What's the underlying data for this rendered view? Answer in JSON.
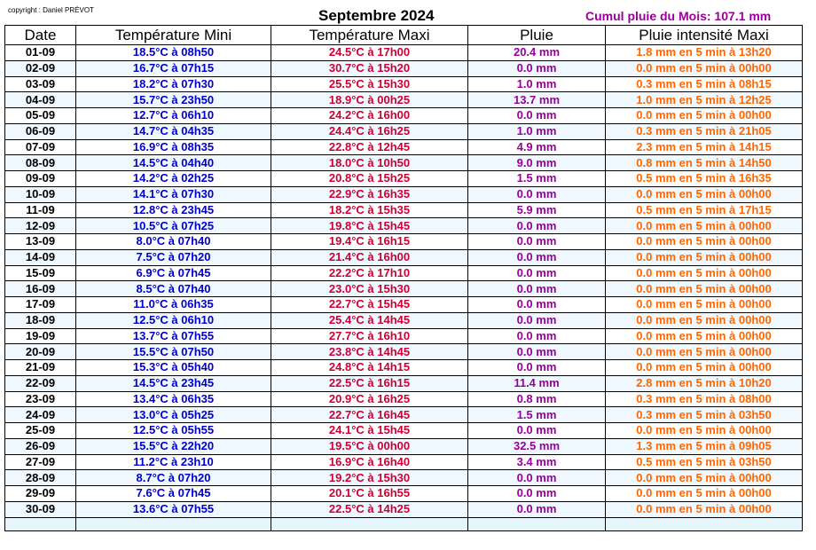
{
  "header": {
    "copyright": "copyright : Daniel PRÉVOT",
    "title": "Septembre 2024",
    "cumul": "Cumul pluie du Mois: 107.1 mm"
  },
  "colors": {
    "min_temp": "#0000cc",
    "max_temp": "#cc0033",
    "rain": "#990099",
    "intensity": "#ff6600",
    "alt_row_bg": "#eef8fe"
  },
  "table": {
    "columns": [
      "Date",
      "Température Mini",
      "Température Maxi",
      "Pluie",
      "Pluie intensité Maxi"
    ],
    "rows": [
      {
        "date": "01-09",
        "min": "18.5°C à 08h50",
        "max": "24.5°C à 17h00",
        "rain": "20.4 mm",
        "intensity": "1.8 mm en 5 min à 13h20"
      },
      {
        "date": "02-09",
        "min": "16.7°C à 07h15",
        "max": "30.7°C à 15h20",
        "rain": "0.0 mm",
        "intensity": "0.0 mm en 5 min à 00h00"
      },
      {
        "date": "03-09",
        "min": "18.2°C à 07h30",
        "max": "25.5°C à 15h30",
        "rain": "1.0 mm",
        "intensity": "0.3 mm en 5 min à 08h15"
      },
      {
        "date": "04-09",
        "min": "15.7°C à 23h50",
        "max": "18.9°C à 00h25",
        "rain": "13.7 mm",
        "intensity": "1.0 mm en 5 min à 12h25"
      },
      {
        "date": "05-09",
        "min": "12.7°C à 06h10",
        "max": "24.2°C à 16h00",
        "rain": "0.0 mm",
        "intensity": "0.0 mm en 5 min à 00h00"
      },
      {
        "date": "06-09",
        "min": "14.7°C à 04h35",
        "max": "24.4°C à 16h25",
        "rain": "1.0 mm",
        "intensity": "0.3 mm en 5 min à 21h05"
      },
      {
        "date": "07-09",
        "min": "16.9°C à 08h35",
        "max": "22.8°C à 12h45",
        "rain": "4.9 mm",
        "intensity": "2.3 mm en 5 min à 14h15"
      },
      {
        "date": "08-09",
        "min": "14.5°C à 04h40",
        "max": "18.0°C à 10h50",
        "rain": "9.0 mm",
        "intensity": "0.8 mm en 5 min à 14h50"
      },
      {
        "date": "09-09",
        "min": "14.2°C à 02h25",
        "max": "20.8°C à 15h25",
        "rain": "1.5 mm",
        "intensity": "0.5 mm en 5 min à 16h35"
      },
      {
        "date": "10-09",
        "min": "14.1°C à 07h30",
        "max": "22.9°C à 16h35",
        "rain": "0.0 mm",
        "intensity": "0.0 mm en 5 min à 00h00"
      },
      {
        "date": "11-09",
        "min": "12.8°C à 23h45",
        "max": "18.2°C à 15h35",
        "rain": "5.9 mm",
        "intensity": "0.5 mm en 5 min à 17h15"
      },
      {
        "date": "12-09",
        "min": "10.5°C à 07h25",
        "max": "19.8°C à 15h45",
        "rain": "0.0 mm",
        "intensity": "0.0 mm en 5 min à 00h00"
      },
      {
        "date": "13-09",
        "min": "8.0°C à 07h40",
        "max": "19.4°C à 16h15",
        "rain": "0.0 mm",
        "intensity": "0.0 mm en 5 min à 00h00"
      },
      {
        "date": "14-09",
        "min": "7.5°C à 07h20",
        "max": "21.4°C à 16h00",
        "rain": "0.0 mm",
        "intensity": "0.0 mm en 5 min à 00h00"
      },
      {
        "date": "15-09",
        "min": "6.9°C à 07h45",
        "max": "22.2°C à 17h10",
        "rain": "0.0 mm",
        "intensity": "0.0 mm en 5 min à 00h00"
      },
      {
        "date": "16-09",
        "min": "8.5°C à 07h40",
        "max": "23.0°C à 15h30",
        "rain": "0.0 mm",
        "intensity": "0.0 mm en 5 min à 00h00"
      },
      {
        "date": "17-09",
        "min": "11.0°C à 06h35",
        "max": "22.7°C à 15h45",
        "rain": "0.0 mm",
        "intensity": "0.0 mm en 5 min à 00h00"
      },
      {
        "date": "18-09",
        "min": "12.5°C à 06h10",
        "max": "25.4°C à 14h45",
        "rain": "0.0 mm",
        "intensity": "0.0 mm en 5 min à 00h00"
      },
      {
        "date": "19-09",
        "min": "13.7°C à 07h55",
        "max": "27.7°C à 16h10",
        "rain": "0.0 mm",
        "intensity": "0.0 mm en 5 min à 00h00"
      },
      {
        "date": "20-09",
        "min": "15.5°C à 07h50",
        "max": "23.8°C à 14h45",
        "rain": "0.0 mm",
        "intensity": "0.0 mm en 5 min à 00h00"
      },
      {
        "date": "21-09",
        "min": "15.3°C à 05h40",
        "max": "24.8°C à 14h15",
        "rain": "0.0 mm",
        "intensity": "0.0 mm en 5 min à 00h00"
      },
      {
        "date": "22-09",
        "min": "14.5°C à 23h45",
        "max": "22.5°C à 16h15",
        "rain": "11.4 mm",
        "intensity": "2.8 mm en 5 min à 10h20"
      },
      {
        "date": "23-09",
        "min": "13.4°C à 06h35",
        "max": "20.9°C à 16h25",
        "rain": "0.8 mm",
        "intensity": "0.3 mm en 5 min à 08h00"
      },
      {
        "date": "24-09",
        "min": "13.0°C à 05h25",
        "max": "22.7°C à 16h45",
        "rain": "1.5 mm",
        "intensity": "0.3 mm en 5 min à 03h50"
      },
      {
        "date": "25-09",
        "min": "12.5°C à 05h55",
        "max": "24.1°C à 15h45",
        "rain": "0.0 mm",
        "intensity": "0.0 mm en 5 min à 00h00"
      },
      {
        "date": "26-09",
        "min": "15.5°C à 22h20",
        "max": "19.5°C à 00h00",
        "rain": "32.5 mm",
        "intensity": "1.3 mm en 5 min à 09h05"
      },
      {
        "date": "27-09",
        "min": "11.2°C à 23h10",
        "max": "16.9°C à 16h40",
        "rain": "3.4 mm",
        "intensity": "0.5 mm en 5 min à 03h50"
      },
      {
        "date": "28-09",
        "min": "8.7°C à 07h20",
        "max": "19.2°C à 15h30",
        "rain": "0.0 mm",
        "intensity": "0.0 mm en 5 min à 00h00"
      },
      {
        "date": "29-09",
        "min": "7.6°C à 07h45",
        "max": "20.1°C à 16h55",
        "rain": "0.0 mm",
        "intensity": "0.0 mm en 5 min à 00h00"
      },
      {
        "date": "30-09",
        "min": "13.6°C à 07h55",
        "max": "22.5°C à 14h25",
        "rain": "0.0 mm",
        "intensity": "0.0 mm en 5 min à 00h00"
      }
    ]
  }
}
